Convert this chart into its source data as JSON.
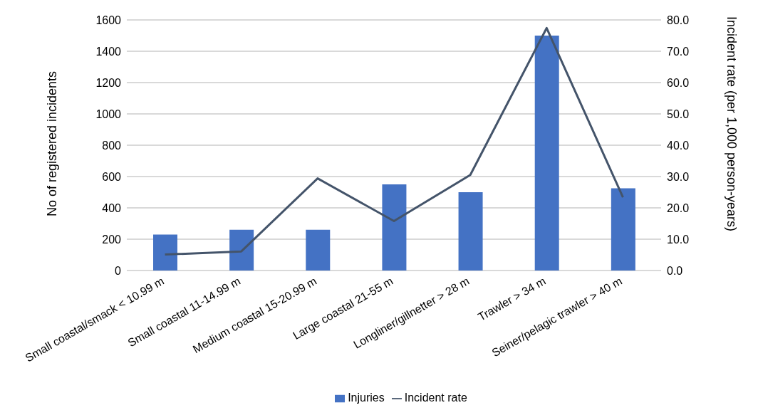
{
  "chart_data": {
    "type": "bar",
    "ylabel": "No of registered incidents",
    "y2label": "Incident rate (per 1,000 person-years)",
    "categories": [
      "Small coastal/smack < 10.99 m",
      "Small coastal 11-14.99 m",
      "Medium coastal 15-20.99 m",
      "Large coastal 21-55 m",
      "Longliner/gillnetter > 28 m",
      "Trawler > 34 m",
      "Seiner/pelagic trawler > 40 m"
    ],
    "series": [
      {
        "name": "Injuries",
        "color": "#4472c4",
        "values": [
          230,
          260,
          260,
          550,
          500,
          1500,
          525
        ]
      },
      {
        "name": "Incident rate",
        "type": "line",
        "axis": "y2",
        "color": "#44546a",
        "values": [
          5.1,
          6.1,
          29.4,
          15.8,
          30.5,
          77.4,
          23.4
        ]
      }
    ],
    "ylim": [
      0,
      1600
    ],
    "yticks": [
      0,
      200,
      400,
      600,
      800,
      1000,
      1200,
      1400,
      1600
    ],
    "y2lim": [
      0,
      80
    ],
    "y2ticks": [
      {
        "value": 0,
        "label": "0.0"
      },
      {
        "value": 10,
        "label": "10.0"
      },
      {
        "value": 20,
        "label": "20.0"
      },
      {
        "value": 30,
        "label": "30.0"
      },
      {
        "value": 40,
        "label": "40.0"
      },
      {
        "value": 50,
        "label": "50.0"
      },
      {
        "value": 60,
        "label": "60.0"
      },
      {
        "value": 70,
        "label": "70.0"
      },
      {
        "value": 80,
        "label": "80.0"
      }
    ],
    "grid": "y",
    "legend": "bottom",
    "marker": "none"
  }
}
